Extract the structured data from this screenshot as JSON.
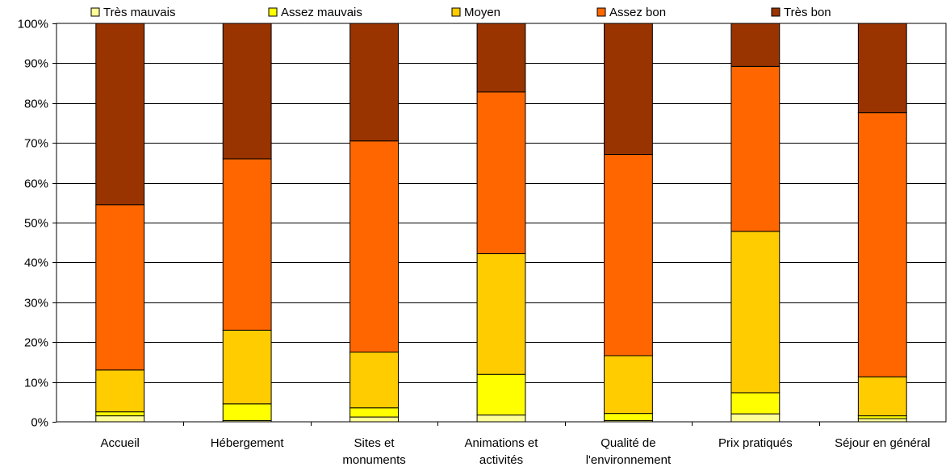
{
  "chart_data": {
    "type": "bar",
    "stacked": true,
    "percent": true,
    "categories": [
      [
        "Accueil"
      ],
      [
        "Hébergement"
      ],
      [
        "Sites et",
        "monuments"
      ],
      [
        "Animations et",
        "activités"
      ],
      [
        "Qualité de",
        "l'environnement"
      ],
      [
        "Prix pratiqués"
      ],
      [
        "Séjour en général"
      ]
    ],
    "series": [
      {
        "name": "Très mauvais",
        "color": "#FFFF99",
        "values": [
          1.5,
          0.3,
          1.2,
          1.7,
          0.3,
          2.0,
          0.8
        ]
      },
      {
        "name": "Assez mauvais",
        "color": "#FFFF00",
        "values": [
          1.0,
          4.2,
          2.3,
          10.2,
          1.8,
          5.3,
          0.7
        ]
      },
      {
        "name": "Moyen",
        "color": "#FFCC00",
        "values": [
          10.5,
          18.5,
          14.0,
          30.3,
          14.5,
          40.5,
          9.8
        ]
      },
      {
        "name": "Assez bon",
        "color": "#FF6600",
        "values": [
          41.5,
          43.0,
          53.0,
          40.6,
          50.5,
          41.4,
          66.3
        ]
      },
      {
        "name": "Très bon",
        "color": "#993300",
        "values": [
          45.5,
          34.0,
          29.5,
          17.2,
          32.9,
          10.8,
          22.4
        ]
      }
    ],
    "yticks": [
      "0%",
      "10%",
      "20%",
      "30%",
      "40%",
      "50%",
      "60%",
      "70%",
      "80%",
      "90%",
      "100%"
    ],
    "ylim": [
      0,
      100
    ],
    "grid": true,
    "legend": "top"
  }
}
